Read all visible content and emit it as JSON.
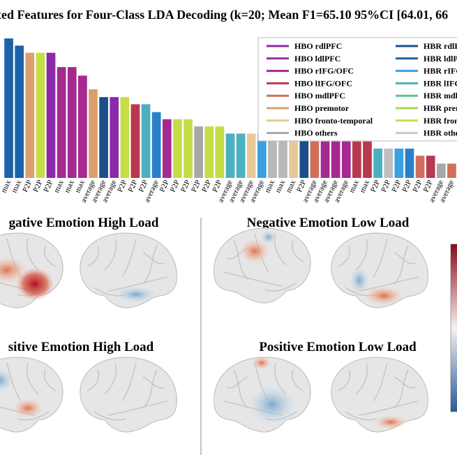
{
  "chart_data": {
    "type": "bar",
    "title": "ted Features for Four-Class LDA Decoding (k=20; Mean F1=65.10 95%CI [64.01, 66",
    "categories": [
      "max",
      "max",
      "P2P",
      "P2P",
      "P2P",
      "max",
      "max",
      "max",
      "average",
      "average",
      "average",
      "P2P",
      "P2P",
      "P2P",
      "average",
      "P2P",
      "P2P",
      "P2P",
      "P2P",
      "P2P",
      "P2P",
      "average",
      "average",
      "average",
      "average",
      "max",
      "max",
      "max",
      "P2P",
      "average",
      "average",
      "average",
      "average",
      "max",
      "max",
      "P2P",
      "P2P",
      "P2P",
      "P2P",
      "P2P",
      "P2P",
      "average",
      "average"
    ],
    "values": [
      19.5,
      18.5,
      17.5,
      17.5,
      17.5,
      15.5,
      15.5,
      14.3,
      12.4,
      11.3,
      11.3,
      11.3,
      10.3,
      10.3,
      9.2,
      8.2,
      8.2,
      8.2,
      7.2,
      7.2,
      7.2,
      6.2,
      6.2,
      6.2,
      6.2,
      6.2,
      6.2,
      6.2,
      6.2,
      5.1,
      5.1,
      5.1,
      5.1,
      5.1,
      5.1,
      4.1,
      4.1,
      4.1,
      4.1,
      3.1,
      3.1,
      2.0,
      2.0
    ],
    "colors": [
      "#1d62a8",
      "#1d62a8",
      "#d9a06e",
      "#c6dd45",
      "#8a2aa8",
      "#a5298f",
      "#a5298f",
      "#a5298f",
      "#d9a06e",
      "#1b4f8a",
      "#8a2aa8",
      "#c6dd45",
      "#b8384f",
      "#4bb0c0",
      "#2a80c8",
      "#a5298f",
      "#c6dd45",
      "#c6dd45",
      "#a8a8a8",
      "#c6dd45",
      "#c6dd45",
      "#4bb0c0",
      "#4bb0c0",
      "#e8c896",
      "#3aa0e0",
      "#b8b8b8",
      "#b8b8b8",
      "#e8c896",
      "#1b4f8a",
      "#d0705a",
      "#a5298f",
      "#a5298f",
      "#a5298f",
      "#b8384f",
      "#b8384f",
      "#4bb0c0",
      "#c0c0c0",
      "#3aa0e0",
      "#2a80c8",
      "#d0705a",
      "#b8384f",
      "#a8a8a8",
      "#d0705a"
    ],
    "ylim": [
      0,
      20
    ],
    "legend": [
      {
        "name": "HBO rdlPFC",
        "color": "#8a2aa8"
      },
      {
        "name": "HBO ldlPFC",
        "color": "#a02aa0"
      },
      {
        "name": "HBO rIFG/OFC",
        "color": "#a5298f"
      },
      {
        "name": "HBO lIFG/OFC",
        "color": "#b8384f"
      },
      {
        "name": "HBO mdlPFC",
        "color": "#d0705a"
      },
      {
        "name": "HBO premotor",
        "color": "#d9a06e"
      },
      {
        "name": "HBO fronto-temporal",
        "color": "#e8c896"
      },
      {
        "name": "HBO others",
        "color": "#a8a8a8"
      },
      {
        "name": "HBR rdlPF",
        "color": "#1b4f8a"
      },
      {
        "name": "HBR ldlPF",
        "color": "#1d62a8"
      },
      {
        "name": "HBR rIFG",
        "color": "#3aa0e0"
      },
      {
        "name": "HBR lIFG/",
        "color": "#4bb0c0"
      },
      {
        "name": "HBR mdlPF",
        "color": "#5cc090"
      },
      {
        "name": "HBR prem",
        "color": "#a8d850"
      },
      {
        "name": "HBR front",
        "color": "#c6dd45"
      },
      {
        "name": "HBR other",
        "color": "#c8c8c8"
      }
    ]
  },
  "panels": [
    "gative Emotion High Load",
    "Negative Emotion Low Load",
    "sitive Emotion High Load",
    "Positive Emotion Low Load"
  ]
}
